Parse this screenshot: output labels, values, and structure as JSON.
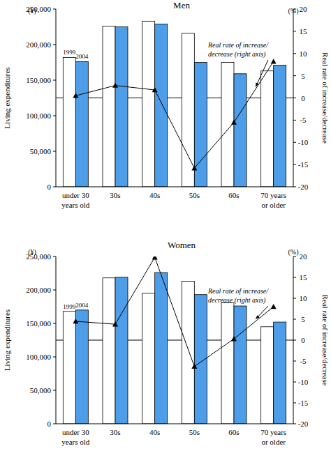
{
  "chart_data": [
    {
      "type": "bar",
      "title": "Men",
      "categories": [
        "under 30 years old",
        "30s",
        "40s",
        "50s",
        "60s",
        "70 years or older"
      ],
      "series": [
        {
          "name": "1999",
          "color": "#ffffff",
          "values": [
            182000,
            226000,
            233000,
            216000,
            175000,
            163000
          ]
        },
        {
          "name": "2004",
          "color": "#4d9de8",
          "values": [
            176000,
            225000,
            229000,
            175000,
            159000,
            171000
          ]
        },
        {
          "type": "line",
          "axis": "y2",
          "color": "#000000",
          "marker": "triangle",
          "values": [
            0.5,
            2.8,
            1.8,
            -15.8,
            -5.5,
            8.2
          ]
        }
      ],
      "ylabel": "Living expenditures",
      "y_unit": "(¥)",
      "y2label": "Real rate of increase/decrease",
      "y2_unit": "(%)",
      "annotation": [
        "Real rate of increase/",
        "decrease (right axis)"
      ],
      "ylim": [
        0,
        250000
      ],
      "yticks": [
        0,
        {
          "value": 50000,
          "label": "50,000"
        },
        {
          "value": 100000,
          "label": "100,000"
        },
        {
          "value": 150000,
          "label": "150,000"
        },
        {
          "value": 200000,
          "label": "200,000"
        },
        {
          "value": 250000,
          "label": "250,000"
        }
      ],
      "y2lim": [
        -20,
        20
      ],
      "y2ticks": [
        -20,
        -15,
        -10,
        -5,
        0,
        5,
        10,
        15,
        20
      ]
    },
    {
      "type": "bar",
      "title": "Women",
      "categories": [
        "under 30 years old",
        "30s",
        "40s",
        "50s",
        "60s",
        "70 years or older"
      ],
      "series": [
        {
          "name": "1999",
          "color": "#ffffff",
          "values": [
            168000,
            218000,
            195000,
            213000,
            181000,
            145000
          ]
        },
        {
          "name": "2004",
          "color": "#4d9de8",
          "values": [
            170000,
            219000,
            226000,
            193000,
            176000,
            152000
          ]
        },
        {
          "type": "line",
          "axis": "y2",
          "color": "#000000",
          "marker": "triangle",
          "values": [
            4.5,
            3.8,
            19.8,
            -6.3,
            0.3,
            8.0
          ]
        }
      ],
      "ylabel": "Living expenditures",
      "y_unit": "(¥)",
      "y2label": "Real rate of increase/decrease",
      "y2_unit": "(%)",
      "annotation": [
        "Real rate of increase/",
        "decrease (right axis)"
      ],
      "ylim": [
        0,
        250000
      ],
      "yticks": [
        0,
        {
          "value": 50000,
          "label": "50,000"
        },
        {
          "value": 100000,
          "label": "100,000"
        },
        {
          "value": 150000,
          "label": "150,000"
        },
        {
          "value": 200000,
          "label": "200,000"
        },
        {
          "value": 250000,
          "label": "250,000"
        }
      ],
      "y2lim": [
        -20,
        20
      ],
      "y2ticks": [
        -20,
        -15,
        -10,
        -5,
        0,
        5,
        10,
        15,
        20
      ]
    }
  ]
}
